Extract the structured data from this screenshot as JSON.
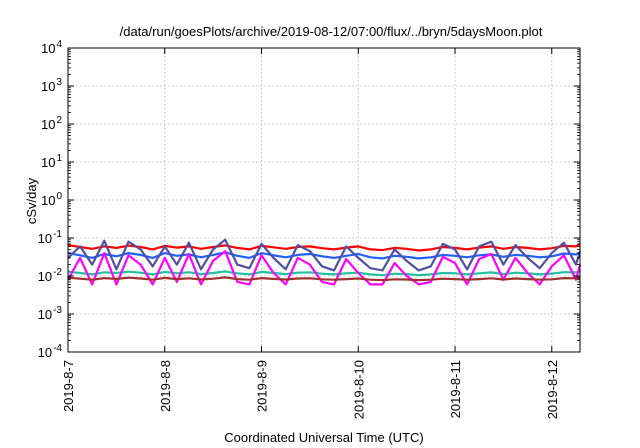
{
  "chart_data": {
    "type": "line",
    "title": "/data/run/goesPlots/archive/2019-08-12/07:00/flux/../bryn/5daysMoon.plot",
    "xlabel": "Coordinated Universal Time (UTC)",
    "ylabel": "cSv/day",
    "yscale": "log",
    "ylim": [
      0.0001,
      10000
    ],
    "y_ticks": [
      {
        "value": 0.0001,
        "base": "10",
        "exp": "-4"
      },
      {
        "value": 0.001,
        "base": "10",
        "exp": "-3"
      },
      {
        "value": 0.01,
        "base": "10",
        "exp": "-2"
      },
      {
        "value": 0.1,
        "base": "10",
        "exp": "-1"
      },
      {
        "value": 1,
        "base": "10",
        "exp": "0"
      },
      {
        "value": 10,
        "base": "10",
        "exp": "1"
      },
      {
        "value": 100,
        "base": "10",
        "exp": "2"
      },
      {
        "value": 1000,
        "base": "10",
        "exp": "3"
      },
      {
        "value": 10000,
        "base": "10",
        "exp": "4"
      }
    ],
    "xlim": [
      "2019-08-07T00:00",
      "2019-08-12T07:00"
    ],
    "x_ticks": [
      {
        "value": "2019-08-07T00:00",
        "label": "2019-8-7"
      },
      {
        "value": "2019-08-08T00:00",
        "label": "2019-8-8"
      },
      {
        "value": "2019-08-09T00:00",
        "label": "2019-8-9"
      },
      {
        "value": "2019-08-10T00:00",
        "label": "2019-8-10"
      },
      {
        "value": "2019-08-11T00:00",
        "label": "2019-8-11"
      },
      {
        "value": "2019-08-12T00:00",
        "label": "2019-8-12"
      }
    ],
    "grid": true,
    "legend": "none",
    "x": [
      "2019-08-07T00:00",
      "2019-08-07T03:00",
      "2019-08-07T06:00",
      "2019-08-07T09:00",
      "2019-08-07T12:00",
      "2019-08-07T15:00",
      "2019-08-07T18:00",
      "2019-08-07T21:00",
      "2019-08-08T00:00",
      "2019-08-08T03:00",
      "2019-08-08T06:00",
      "2019-08-08T09:00",
      "2019-08-08T12:00",
      "2019-08-08T15:00",
      "2019-08-08T18:00",
      "2019-08-08T21:00",
      "2019-08-09T00:00",
      "2019-08-09T03:00",
      "2019-08-09T06:00",
      "2019-08-09T09:00",
      "2019-08-09T12:00",
      "2019-08-09T15:00",
      "2019-08-09T18:00",
      "2019-08-09T21:00",
      "2019-08-10T00:00",
      "2019-08-10T03:00",
      "2019-08-10T06:00",
      "2019-08-10T09:00",
      "2019-08-10T12:00",
      "2019-08-10T15:00",
      "2019-08-10T18:00",
      "2019-08-10T21:00",
      "2019-08-11T00:00",
      "2019-08-11T03:00",
      "2019-08-11T06:00",
      "2019-08-11T09:00",
      "2019-08-11T12:00",
      "2019-08-11T15:00",
      "2019-08-11T18:00",
      "2019-08-11T21:00",
      "2019-08-12T00:00",
      "2019-08-12T03:00",
      "2019-08-12T06:00",
      "2019-08-12T07:00"
    ],
    "series": [
      {
        "color": "#ff0000",
        "values": [
          0.065,
          0.058,
          0.052,
          0.06,
          0.055,
          0.063,
          0.058,
          0.05,
          0.062,
          0.056,
          0.06,
          0.052,
          0.058,
          0.064,
          0.055,
          0.05,
          0.062,
          0.057,
          0.052,
          0.058,
          0.06,
          0.054,
          0.05,
          0.056,
          0.06,
          0.05,
          0.048,
          0.055,
          0.052,
          0.047,
          0.05,
          0.058,
          0.055,
          0.05,
          0.056,
          0.06,
          0.052,
          0.058,
          0.055,
          0.05,
          0.054,
          0.062,
          0.06,
          0.07
        ]
      },
      {
        "color": "#2060ff",
        "values": [
          0.04,
          0.035,
          0.03,
          0.038,
          0.033,
          0.04,
          0.036,
          0.03,
          0.04,
          0.034,
          0.037,
          0.031,
          0.036,
          0.042,
          0.034,
          0.03,
          0.04,
          0.035,
          0.031,
          0.036,
          0.038,
          0.033,
          0.03,
          0.034,
          0.038,
          0.031,
          0.029,
          0.034,
          0.032,
          0.029,
          0.031,
          0.036,
          0.034,
          0.031,
          0.035,
          0.037,
          0.032,
          0.036,
          0.034,
          0.031,
          0.033,
          0.039,
          0.037,
          0.042
        ]
      },
      {
        "color": "#5050a0",
        "values": [
          0.03,
          0.06,
          0.02,
          0.085,
          0.015,
          0.08,
          0.05,
          0.018,
          0.06,
          0.02,
          0.075,
          0.015,
          0.05,
          0.09,
          0.02,
          0.016,
          0.07,
          0.03,
          0.015,
          0.065,
          0.045,
          0.018,
          0.014,
          0.06,
          0.03,
          0.016,
          0.014,
          0.05,
          0.025,
          0.014,
          0.018,
          0.07,
          0.05,
          0.015,
          0.06,
          0.08,
          0.02,
          0.065,
          0.03,
          0.016,
          0.04,
          0.075,
          0.02,
          0.045
        ]
      },
      {
        "color": "#20c0a0",
        "values": [
          0.013,
          0.012,
          0.011,
          0.0125,
          0.012,
          0.013,
          0.0122,
          0.011,
          0.0128,
          0.0118,
          0.0125,
          0.0112,
          0.012,
          0.0132,
          0.0118,
          0.011,
          0.0128,
          0.012,
          0.0112,
          0.0122,
          0.0125,
          0.0115,
          0.011,
          0.0118,
          0.0122,
          0.011,
          0.0105,
          0.0115,
          0.0112,
          0.0105,
          0.011,
          0.012,
          0.0118,
          0.011,
          0.0118,
          0.0124,
          0.0112,
          0.0122,
          0.0118,
          0.011,
          0.0116,
          0.0126,
          0.0124,
          0.013
        ]
      },
      {
        "color": "#ff00ff",
        "values": [
          0.008,
          0.03,
          0.006,
          0.04,
          0.006,
          0.035,
          0.02,
          0.006,
          0.03,
          0.007,
          0.038,
          0.006,
          0.025,
          0.045,
          0.007,
          0.006,
          0.035,
          0.012,
          0.006,
          0.03,
          0.02,
          0.007,
          0.006,
          0.028,
          0.012,
          0.006,
          0.006,
          0.022,
          0.01,
          0.006,
          0.007,
          0.032,
          0.022,
          0.006,
          0.028,
          0.038,
          0.008,
          0.03,
          0.012,
          0.006,
          0.018,
          0.035,
          0.008,
          0.02
        ]
      },
      {
        "color": "#a03030",
        "values": [
          0.009,
          0.0085,
          0.008,
          0.0088,
          0.0084,
          0.009,
          0.0086,
          0.008,
          0.0089,
          0.0083,
          0.0087,
          0.0081,
          0.0085,
          0.0092,
          0.0083,
          0.008,
          0.0088,
          0.0084,
          0.0081,
          0.0086,
          0.0087,
          0.0082,
          0.008,
          0.0083,
          0.0086,
          0.008,
          0.0078,
          0.0082,
          0.0081,
          0.0078,
          0.008,
          0.0085,
          0.0083,
          0.008,
          0.0083,
          0.0087,
          0.0081,
          0.0086,
          0.0083,
          0.008,
          0.0082,
          0.0088,
          0.0087,
          0.009
        ]
      }
    ]
  }
}
